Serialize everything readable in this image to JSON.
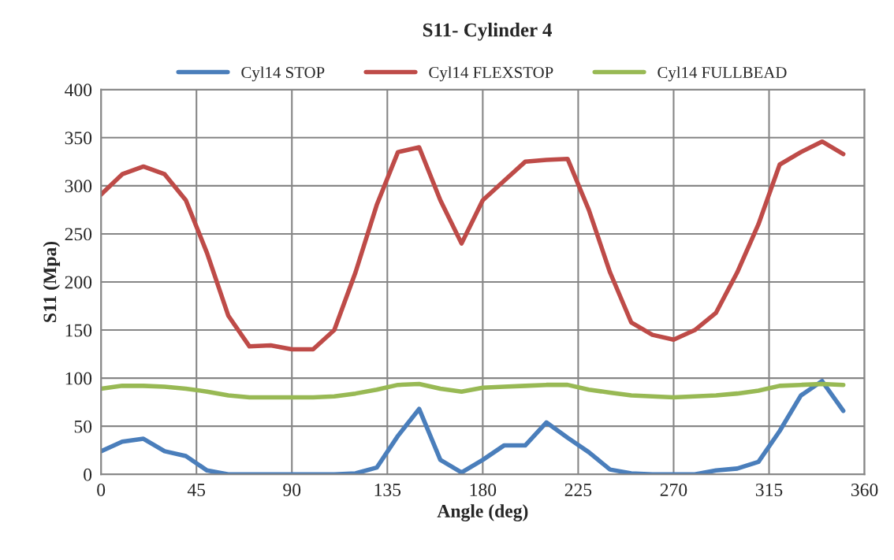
{
  "chart_data": {
    "type": "line",
    "title": "S11- Cylinder 4",
    "xlabel": "Angle (deg)",
    "ylabel": "S11 (Mpa)",
    "x": [
      0,
      10,
      20,
      30,
      40,
      50,
      60,
      70,
      80,
      90,
      100,
      110,
      120,
      130,
      140,
      150,
      160,
      170,
      180,
      190,
      200,
      210,
      220,
      230,
      240,
      250,
      260,
      270,
      280,
      290,
      300,
      310,
      320,
      330,
      340,
      350
    ],
    "series": [
      {
        "name": "Cyl14 STOP",
        "color": "#4a7ebb",
        "values": [
          24,
          34,
          37,
          24,
          19,
          4,
          0,
          0,
          0,
          0,
          0,
          0,
          1,
          7,
          40,
          68,
          15,
          2,
          15,
          30,
          30,
          54,
          38,
          23,
          5,
          1,
          0,
          0,
          0,
          4,
          6,
          13,
          45,
          82,
          97,
          66
        ]
      },
      {
        "name": "Cyl14 FLEXSTOP",
        "color": "#be4b48",
        "values": [
          291,
          312,
          320,
          312,
          285,
          230,
          165,
          133,
          134,
          130,
          130,
          150,
          210,
          280,
          335,
          340,
          285,
          240,
          285,
          305,
          325,
          327,
          328,
          275,
          210,
          158,
          145,
          140,
          150,
          168,
          210,
          260,
          322,
          335,
          346,
          333
        ]
      },
      {
        "name": "Cyl14 FULLBEAD",
        "color": "#98b954",
        "values": [
          89,
          92,
          92,
          91,
          89,
          86,
          82,
          80,
          80,
          80,
          80,
          81,
          84,
          88,
          93,
          94,
          89,
          86,
          90,
          91,
          92,
          93,
          93,
          88,
          85,
          82,
          81,
          80,
          81,
          82,
          84,
          87,
          92,
          93,
          94,
          93
        ]
      }
    ],
    "xlim": [
      0,
      360
    ],
    "xticks": [
      0,
      45,
      90,
      135,
      180,
      225,
      270,
      315,
      360
    ],
    "ylim": [
      0,
      400
    ],
    "yticks": [
      0,
      50,
      100,
      150,
      200,
      250,
      300,
      350,
      400
    ],
    "grid": true,
    "legend": "top",
    "marker": "none",
    "line_style": "solid"
  }
}
